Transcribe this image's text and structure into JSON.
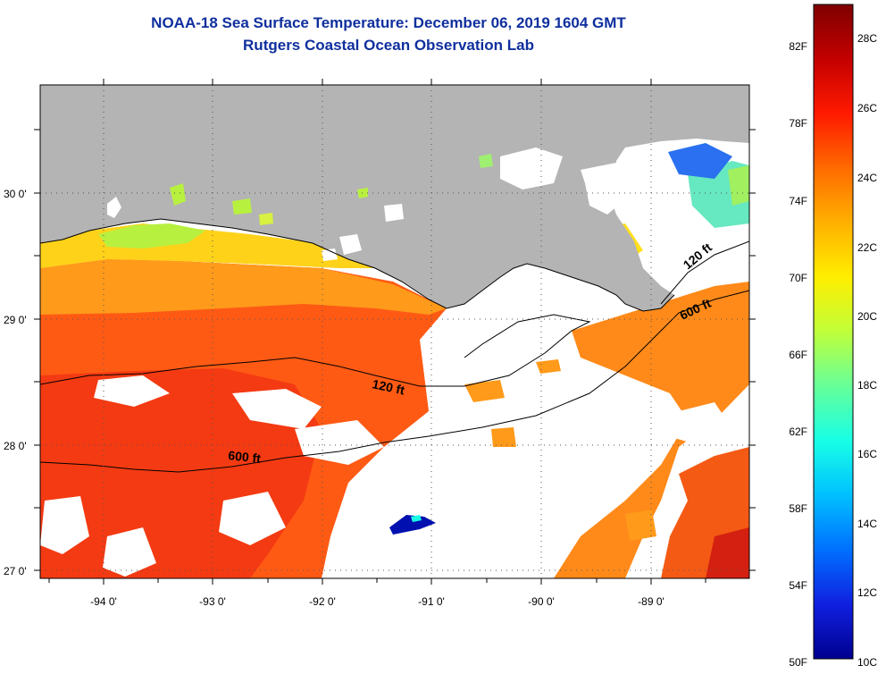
{
  "title": "NOAA-18 Sea Surface Temperature:  December 06, 2019 1604 GMT",
  "subtitle": "Rutgers Coastal Ocean Observation Lab",
  "map": {
    "lat_labels": [
      "30 0'",
      "29 0'",
      "28 0'",
      "27 0'"
    ],
    "lon_labels": [
      "-94 0'",
      "-93 0'",
      "-92 0'",
      "-91 0'",
      "-90 0'",
      "-89 0'"
    ],
    "contour_labels": [
      "120 ft",
      "600 ft",
      "120 ft",
      "600 ft"
    ]
  },
  "colorbar": {
    "fahrenheit_labels": [
      "82F",
      "78F",
      "74F",
      "70F",
      "66F",
      "62F",
      "58F",
      "54F",
      "50F"
    ],
    "celsius_labels": [
      "28C",
      "26C",
      "24C",
      "22C",
      "20C",
      "18C",
      "16C",
      "14C",
      "12C",
      "10C"
    ],
    "stops": [
      "#7f0000",
      "#c40000",
      "#ff1a00",
      "#ff6a00",
      "#ffb000",
      "#ffee00",
      "#c0ff3a",
      "#66ff99",
      "#18ffe6",
      "#00c0ff",
      "#0070ff",
      "#1020e0",
      "#00008f"
    ]
  },
  "colors": {
    "land": "#b4b4b4",
    "warm": "#ff5a14",
    "orange": "#ff8a1a",
    "title": "#0f2f9e"
  }
}
